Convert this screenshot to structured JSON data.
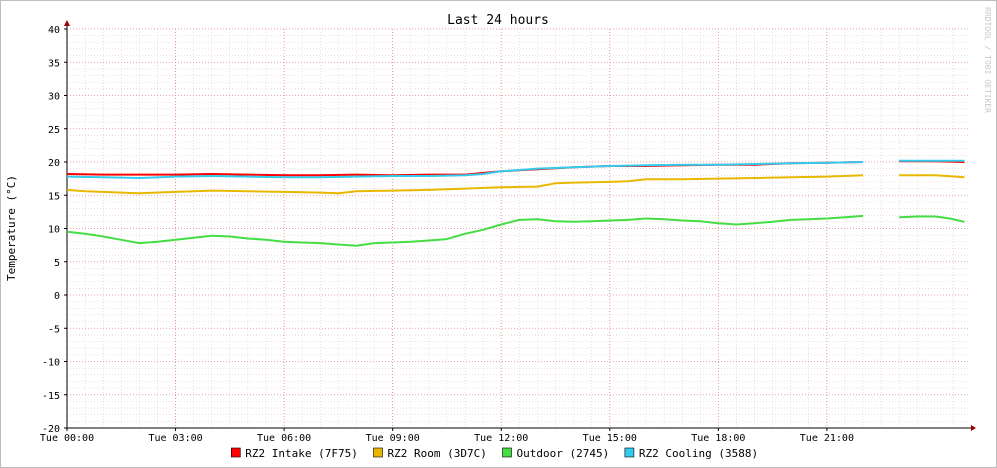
{
  "chart_data": {
    "type": "line",
    "title": "Last 24 hours",
    "ylabel": "Temperature (°C)",
    "xlabel": "",
    "watermark": "RRDTOOL / TOBI OETIKER",
    "ylim": [
      -20,
      40
    ],
    "yticks": [
      -20,
      -15,
      -10,
      -5,
      0,
      5,
      10,
      15,
      20,
      25,
      30,
      35,
      40
    ],
    "xlim": [
      0,
      24.9
    ],
    "xticks": [
      {
        "hour": 0,
        "label": "Tue 00:00"
      },
      {
        "hour": 3,
        "label": "Tue 03:00"
      },
      {
        "hour": 6,
        "label": "Tue 06:00"
      },
      {
        "hour": 9,
        "label": "Tue 09:00"
      },
      {
        "hour": 12,
        "label": "Tue 12:00"
      },
      {
        "hour": 15,
        "label": "Tue 15:00"
      },
      {
        "hour": 18,
        "label": "Tue 18:00"
      },
      {
        "hour": 21,
        "label": "Tue 21:00"
      }
    ],
    "grid": true,
    "legend_position": "bottom",
    "series": [
      {
        "name": "RZ2 Intake (7F75)",
        "color": "#ff0000",
        "x": [
          0,
          1,
          2,
          3,
          4,
          5,
          6,
          7,
          8,
          9,
          10,
          11,
          12,
          13,
          14,
          15,
          16,
          17,
          18,
          19,
          20,
          21,
          22,
          22.3,
          23,
          24,
          24.8
        ],
        "y": [
          18.2,
          18.1,
          18.1,
          18.1,
          18.2,
          18.1,
          18.0,
          18.0,
          18.1,
          18.0,
          18.1,
          18.1,
          18.6,
          18.9,
          19.2,
          19.4,
          19.4,
          19.5,
          19.6,
          19.6,
          19.8,
          19.9,
          20.0,
          null,
          20.1,
          20.1,
          20.0
        ]
      },
      {
        "name": "RZ2 Room (3D7C)",
        "color": "#e8b800",
        "x": [
          0,
          0.5,
          1,
          2,
          3,
          4,
          5,
          6,
          7,
          7.5,
          8,
          9,
          10,
          11,
          11.5,
          12,
          13,
          13.5,
          14,
          15,
          15.5,
          16,
          17,
          18,
          19,
          20,
          21,
          22,
          22.3,
          23,
          24,
          24.8
        ],
        "y": [
          15.8,
          15.6,
          15.5,
          15.3,
          15.5,
          15.7,
          15.6,
          15.5,
          15.4,
          15.3,
          15.6,
          15.7,
          15.8,
          16.0,
          16.1,
          16.2,
          16.3,
          16.8,
          16.9,
          17.0,
          17.1,
          17.4,
          17.4,
          17.5,
          17.6,
          17.7,
          17.8,
          18.0,
          null,
          18.0,
          18.0,
          17.7
        ]
      },
      {
        "name": "Outdoor (2745)",
        "color": "#44dd44",
        "x": [
          0,
          0.5,
          1,
          1.5,
          2,
          2.5,
          3,
          3.5,
          4,
          4.5,
          5,
          5.5,
          6,
          6.5,
          7,
          7.5,
          8,
          8.5,
          9,
          9.5,
          10,
          10.5,
          11,
          11.5,
          12,
          12.5,
          13,
          13.5,
          14,
          14.5,
          15,
          15.5,
          16,
          16.5,
          17,
          17.5,
          18,
          18.5,
          19,
          19.5,
          20,
          20.5,
          21,
          21.5,
          22,
          22.3,
          23,
          23.5,
          24,
          24.4,
          24.8
        ],
        "y": [
          9.5,
          9.2,
          8.8,
          8.3,
          7.8,
          8.0,
          8.3,
          8.6,
          8.9,
          8.8,
          8.5,
          8.3,
          8.0,
          7.9,
          7.8,
          7.6,
          7.4,
          7.8,
          7.9,
          8.0,
          8.2,
          8.4,
          9.2,
          9.8,
          10.6,
          11.3,
          11.4,
          11.1,
          11.0,
          11.1,
          11.2,
          11.3,
          11.5,
          11.4,
          11.2,
          11.1,
          10.8,
          10.6,
          10.8,
          11.0,
          11.3,
          11.4,
          11.5,
          11.7,
          11.9,
          null,
          11.7,
          11.8,
          11.8,
          11.5,
          11.0
        ]
      },
      {
        "name": "RZ2 Cooling (3588)",
        "color": "#33ccee",
        "x": [
          0,
          1,
          2,
          3,
          4,
          5,
          6,
          7,
          8,
          9,
          10,
          11,
          11.5,
          12,
          12.5,
          13,
          14,
          15,
          16,
          17,
          18,
          19,
          20,
          21,
          22,
          22.3,
          23,
          24,
          24.8
        ],
        "y": [
          17.8,
          17.7,
          17.6,
          17.8,
          17.9,
          17.8,
          17.7,
          17.7,
          17.8,
          17.9,
          17.9,
          18.0,
          18.2,
          18.6,
          18.8,
          19.0,
          19.2,
          19.4,
          19.5,
          19.6,
          19.6,
          19.7,
          19.8,
          19.9,
          20.0,
          null,
          20.2,
          20.2,
          20.2
        ]
      }
    ]
  }
}
